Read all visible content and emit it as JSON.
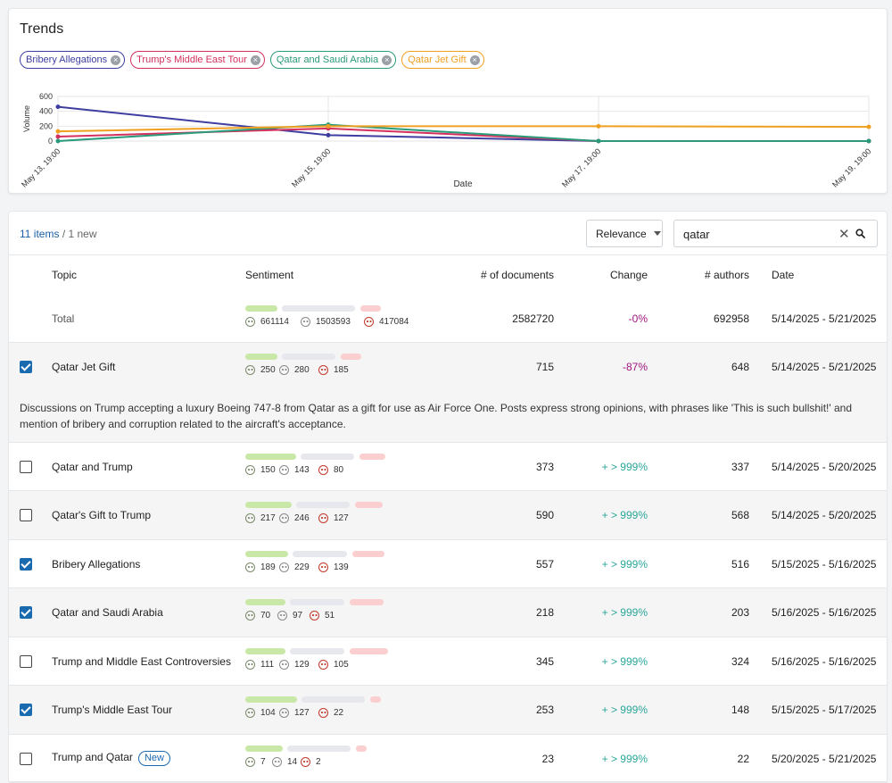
{
  "trends": {
    "title": "Trends",
    "chips": [
      {
        "label": "Bribery Allegations",
        "color": "#3d3ea0"
      },
      {
        "label": "Trump's Middle East Tour",
        "color": "#d4305e"
      },
      {
        "label": "Qatar and Saudi Arabia",
        "color": "#2a9a7a"
      },
      {
        "label": "Qatar Jet Gift",
        "color": "#f0a020"
      }
    ]
  },
  "chart_data": {
    "type": "line",
    "xlabel": "Date",
    "ylabel": "Volume",
    "x": [
      "May 13, 19:00",
      "May 15, 19:00",
      "May 17, 19:00",
      "May 19, 19:00"
    ],
    "ylim": [
      0,
      600
    ],
    "yticks": [
      0,
      200,
      400,
      600
    ],
    "grid": true,
    "series": [
      {
        "name": "Bribery Allegations",
        "color": "#3d3ea0",
        "values": [
          460,
          80,
          0,
          0
        ]
      },
      {
        "name": "Trump's Middle East Tour",
        "color": "#d4305e",
        "values": [
          60,
          170,
          0,
          0
        ]
      },
      {
        "name": "Qatar and Saudi Arabia",
        "color": "#2a9a7a",
        "values": [
          0,
          220,
          0,
          0
        ]
      },
      {
        "name": "Qatar Jet Gift",
        "color": "#f0a020",
        "values": [
          130,
          200,
          200,
          190
        ]
      }
    ]
  },
  "toolbar": {
    "items_label": "11 items",
    "new_label": "/ 1 new",
    "sort_label": "Relevance",
    "search_value": "qatar"
  },
  "columns": {
    "topic": "Topic",
    "sentiment": "Sentiment",
    "documents": "# of documents",
    "change": "Change",
    "authors": "# authors",
    "date": "Date"
  },
  "total": {
    "label": "Total",
    "pos": "661114",
    "neu": "1503593",
    "neg": "417084",
    "documents": "2582720",
    "change": "-0%",
    "authors": "692958",
    "date": "5/14/2025 - 5/21/2025"
  },
  "expanded_description": "Discussions on Trump accepting a luxury Boeing 747-8 from Qatar as a gift for use as Air Force One. Posts express strong opinions, with phrases like 'This is such bullshit!' and mention of bribery and corruption related to the aircraft's acceptance.",
  "rows": [
    {
      "topic": "Qatar Jet Gift",
      "checked": true,
      "pos": "250",
      "neu": "280",
      "neg": "185",
      "documents": "715",
      "change": "-87%",
      "change_dir": "neg",
      "authors": "648",
      "date": "5/14/2025 - 5/21/2025"
    },
    {
      "topic": "Qatar and Trump",
      "checked": false,
      "pos": "150",
      "neu": "143",
      "neg": "80",
      "documents": "373",
      "change": "+ > 999%",
      "change_dir": "pos",
      "authors": "337",
      "date": "5/14/2025 - 5/20/2025"
    },
    {
      "topic": "Qatar's Gift to Trump",
      "checked": false,
      "pos": "217",
      "neu": "246",
      "neg": "127",
      "documents": "590",
      "change": "+ > 999%",
      "change_dir": "pos",
      "authors": "568",
      "date": "5/14/2025 - 5/20/2025"
    },
    {
      "topic": "Bribery Allegations",
      "checked": true,
      "pos": "189",
      "neu": "229",
      "neg": "139",
      "documents": "557",
      "change": "+ > 999%",
      "change_dir": "pos",
      "authors": "516",
      "date": "5/15/2025 - 5/16/2025"
    },
    {
      "topic": "Qatar and Saudi Arabia",
      "checked": true,
      "pos": "70",
      "neu": "97",
      "neg": "51",
      "documents": "218",
      "change": "+ > 999%",
      "change_dir": "pos",
      "authors": "203",
      "date": "5/16/2025 - 5/16/2025"
    },
    {
      "topic": "Trump and Middle East Controversies",
      "checked": false,
      "pos": "111",
      "neu": "129",
      "neg": "105",
      "documents": "345",
      "change": "+ > 999%",
      "change_dir": "pos",
      "authors": "324",
      "date": "5/16/2025 - 5/16/2025"
    },
    {
      "topic": "Trump's Middle East Tour",
      "checked": true,
      "pos": "104",
      "neu": "127",
      "neg": "22",
      "documents": "253",
      "change": "+ > 999%",
      "change_dir": "pos",
      "authors": "148",
      "date": "5/15/2025 - 5/17/2025"
    },
    {
      "topic": "Trump and Qatar",
      "checked": false,
      "badge": "New",
      "pos": "7",
      "neu": "14",
      "neg": "2",
      "documents": "23",
      "change": "+ > 999%",
      "change_dir": "pos",
      "authors": "22",
      "date": "5/20/2025 - 5/21/2025"
    }
  ]
}
